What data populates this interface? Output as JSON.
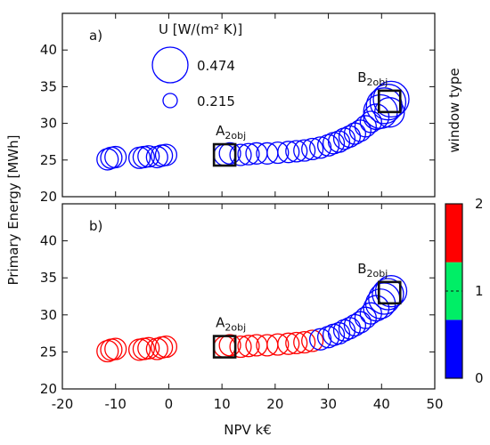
{
  "chart_data": {
    "type": "scatter",
    "xlabel": "NPV k€",
    "ylabel": "Primary Energy [MWh]",
    "xlim": [
      -20,
      50
    ],
    "ylim": [
      20,
      45
    ],
    "xticks": [
      -20,
      -10,
      0,
      10,
      20,
      30,
      40,
      50
    ],
    "yticks": [
      20,
      25,
      30,
      35,
      40
    ],
    "colorbar": {
      "title": "window type",
      "ticks": [
        "0",
        "1",
        "2"
      ],
      "segments": [
        {
          "from": 0,
          "to": 0.67,
          "color": "#0000ff"
        },
        {
          "from": 0.67,
          "to": 1.33,
          "color": "#00ee66"
        },
        {
          "from": 1.33,
          "to": 2,
          "color": "#ff0000"
        }
      ]
    },
    "size_legend": {
      "title": "U [W/(m² K)]",
      "entries": [
        {
          "label": "0.474",
          "u": 0.474
        },
        {
          "label": "0.215",
          "u": 0.215
        }
      ]
    },
    "panels": [
      {
        "tag": "a)",
        "series_color": "#0000ff",
        "points": [
          {
            "x": -11.5,
            "y": 25.1,
            "u": 0.3
          },
          {
            "x": -10.8,
            "y": 25.3,
            "u": 0.3
          },
          {
            "x": -10.0,
            "y": 25.4,
            "u": 0.3
          },
          {
            "x": -5.5,
            "y": 25.3,
            "u": 0.3
          },
          {
            "x": -4.7,
            "y": 25.4,
            "u": 0.3
          },
          {
            "x": -3.8,
            "y": 25.5,
            "u": 0.3
          },
          {
            "x": -2.2,
            "y": 25.4,
            "u": 0.3
          },
          {
            "x": -1.3,
            "y": 25.6,
            "u": 0.3
          },
          {
            "x": -0.5,
            "y": 25.7,
            "u": 0.3
          },
          {
            "x": 10.5,
            "y": 25.7,
            "u": 0.3
          },
          {
            "x": 11.5,
            "y": 25.9,
            "u": 0.3
          },
          {
            "x": 13.5,
            "y": 25.7,
            "u": 0.3
          },
          {
            "x": 15.0,
            "y": 25.8,
            "u": 0.3
          },
          {
            "x": 16.5,
            "y": 25.9,
            "u": 0.3
          },
          {
            "x": 18.5,
            "y": 25.9,
            "u": 0.3
          },
          {
            "x": 20.5,
            "y": 26.0,
            "u": 0.3
          },
          {
            "x": 22.5,
            "y": 26.1,
            "u": 0.3
          },
          {
            "x": 24.0,
            "y": 26.2,
            "u": 0.3
          },
          {
            "x": 25.5,
            "y": 26.3,
            "u": 0.3
          },
          {
            "x": 27.0,
            "y": 26.5,
            "u": 0.3
          },
          {
            "x": 28.5,
            "y": 26.7,
            "u": 0.3
          },
          {
            "x": 30.0,
            "y": 27.0,
            "u": 0.3
          },
          {
            "x": 31.0,
            "y": 27.3,
            "u": 0.3
          },
          {
            "x": 32.0,
            "y": 27.5,
            "u": 0.3
          },
          {
            "x": 33.0,
            "y": 27.9,
            "u": 0.3
          },
          {
            "x": 34.0,
            "y": 28.2,
            "u": 0.3
          },
          {
            "x": 35.0,
            "y": 28.6,
            "u": 0.3
          },
          {
            "x": 36.0,
            "y": 29.0,
            "u": 0.3
          },
          {
            "x": 37.0,
            "y": 29.6,
            "u": 0.3
          },
          {
            "x": 38.0,
            "y": 30.2,
            "u": 0.3
          },
          {
            "x": 39.0,
            "y": 30.9,
            "u": 0.35
          },
          {
            "x": 39.8,
            "y": 31.6,
            "u": 0.45
          },
          {
            "x": 40.5,
            "y": 32.4,
            "u": 0.474
          },
          {
            "x": 41.2,
            "y": 32.9,
            "u": 0.474
          },
          {
            "x": 41.8,
            "y": 33.3,
            "u": 0.474
          },
          {
            "x": 41.5,
            "y": 31.5,
            "u": 0.4
          }
        ],
        "markers": [
          {
            "label": "A",
            "sub": "2obj",
            "x": 10.5,
            "y": 25.7
          },
          {
            "label": "B",
            "sub": "2obj",
            "x": 41.5,
            "y": 33.0
          }
        ]
      },
      {
        "tag": "b)",
        "points": [
          {
            "x": -11.5,
            "y": 25.1,
            "u": 0.3,
            "w": 2
          },
          {
            "x": -10.8,
            "y": 25.3,
            "u": 0.3,
            "w": 2
          },
          {
            "x": -10.0,
            "y": 25.4,
            "u": 0.3,
            "w": 2
          },
          {
            "x": -5.5,
            "y": 25.3,
            "u": 0.3,
            "w": 2
          },
          {
            "x": -4.7,
            "y": 25.4,
            "u": 0.3,
            "w": 2
          },
          {
            "x": -3.8,
            "y": 25.5,
            "u": 0.3,
            "w": 2
          },
          {
            "x": -2.2,
            "y": 25.4,
            "u": 0.3,
            "w": 2
          },
          {
            "x": -1.3,
            "y": 25.6,
            "u": 0.3,
            "w": 2
          },
          {
            "x": -0.5,
            "y": 25.7,
            "u": 0.3,
            "w": 2
          },
          {
            "x": 10.5,
            "y": 25.7,
            "u": 0.3,
            "w": 2
          },
          {
            "x": 11.5,
            "y": 25.9,
            "u": 0.3,
            "w": 2
          },
          {
            "x": 13.5,
            "y": 25.7,
            "u": 0.3,
            "w": 2
          },
          {
            "x": 15.0,
            "y": 25.8,
            "u": 0.3,
            "w": 2
          },
          {
            "x": 16.5,
            "y": 25.9,
            "u": 0.3,
            "w": 2
          },
          {
            "x": 18.5,
            "y": 25.9,
            "u": 0.3,
            "w": 2
          },
          {
            "x": 20.5,
            "y": 26.0,
            "u": 0.3,
            "w": 2
          },
          {
            "x": 22.5,
            "y": 26.1,
            "u": 0.3,
            "w": 2
          },
          {
            "x": 24.0,
            "y": 26.2,
            "u": 0.3,
            "w": 2
          },
          {
            "x": 25.5,
            "y": 26.3,
            "u": 0.3,
            "w": 2
          },
          {
            "x": 27.0,
            "y": 26.5,
            "u": 0.3,
            "w": 2
          },
          {
            "x": 28.5,
            "y": 26.7,
            "u": 0.3,
            "w": 0
          },
          {
            "x": 30.0,
            "y": 27.0,
            "u": 0.3,
            "w": 0
          },
          {
            "x": 31.0,
            "y": 27.3,
            "u": 0.3,
            "w": 0
          },
          {
            "x": 32.0,
            "y": 27.5,
            "u": 0.3,
            "w": 0
          },
          {
            "x": 33.0,
            "y": 27.9,
            "u": 0.3,
            "w": 0
          },
          {
            "x": 34.0,
            "y": 28.2,
            "u": 0.3,
            "w": 0
          },
          {
            "x": 35.0,
            "y": 28.6,
            "u": 0.3,
            "w": 0
          },
          {
            "x": 36.0,
            "y": 29.0,
            "u": 0.3,
            "w": 0
          },
          {
            "x": 37.0,
            "y": 29.6,
            "u": 0.3,
            "w": 0
          },
          {
            "x": 38.0,
            "y": 30.2,
            "u": 0.3,
            "w": 0
          },
          {
            "x": 39.0,
            "y": 30.9,
            "u": 0.35,
            "w": 0
          },
          {
            "x": 39.8,
            "y": 31.5,
            "u": 0.4,
            "w": 0
          },
          {
            "x": 40.5,
            "y": 32.2,
            "u": 0.42,
            "w": 0
          },
          {
            "x": 41.2,
            "y": 32.8,
            "u": 0.42,
            "w": 0
          },
          {
            "x": 41.8,
            "y": 33.2,
            "u": 0.42,
            "w": 0
          }
        ],
        "markers": [
          {
            "label": "A",
            "sub": "2obj",
            "x": 10.5,
            "y": 25.7
          },
          {
            "label": "B",
            "sub": "2obj",
            "x": 41.5,
            "y": 33.0
          }
        ]
      }
    ]
  }
}
